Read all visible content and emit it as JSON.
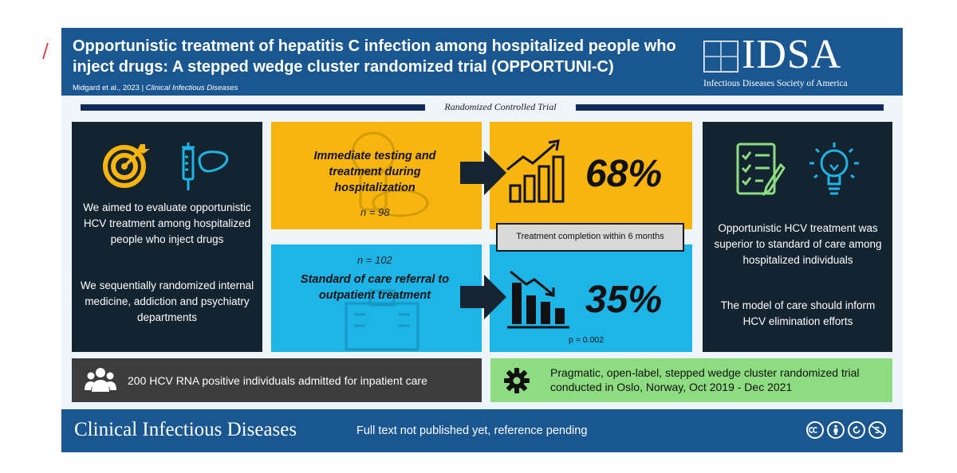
{
  "header": {
    "title": "Opportunistic treatment of hepatitis C infection among hospitalized people who inject drugs: A stepped wedge cluster randomized trial (OPPORTUNI-C)",
    "authors": "Midgard et al., 2023",
    "separator": "|",
    "journal": "Clinical Infectious Diseases"
  },
  "logo": {
    "name": "IDSA",
    "subtitle": "Infectious Diseases Society of America"
  },
  "study_type": "Randomized Controlled Trial",
  "left_panel": {
    "icons": [
      "target-icon",
      "syringe-liver-icon"
    ],
    "aim": "We aimed to evaluate opportunistic HCV treatment among hospitalized people who inject drugs",
    "method": "We sequentially randomized internal medicine, addiction and psychiatry departments"
  },
  "arms": [
    {
      "label": "Immediate testing and treatment during hospitalization",
      "n": "n = 98",
      "result": "68%",
      "color": "#f7b50d",
      "trend_icon": "bar-chart-up-icon"
    },
    {
      "label": "Standard of care referral to outpatient treatment",
      "n": "n = 102",
      "result": "35%",
      "color": "#1db5e7",
      "trend_icon": "bar-chart-down-icon"
    }
  ],
  "outcome_label": "Treatment completion within 6 months",
  "p_value": "p = 0.002",
  "right_panel": {
    "icons": [
      "checklist-icon",
      "lightbulb-icon"
    ],
    "conclusion": "Opportunistic HCV treatment was superior to standard of care among hospitalized individuals",
    "implication": "The model of care should inform HCV elimination efforts"
  },
  "population": {
    "icon": "people-group-icon",
    "text": "200 HCV RNA positive individuals admitted for inpatient care"
  },
  "design": {
    "icon": "gear-icon",
    "text": "Pragmatic, open-label, stepped wedge cluster randomized trial conducted in Oslo, Norway, Oct 2019 - Dec 2021"
  },
  "footer": {
    "journal": "Clinical Infectious Diseases",
    "note": "Full text not published yet, reference pending",
    "license_icons": [
      "cc-icon",
      "by-icon",
      "sa-icon",
      "nc-icon"
    ]
  },
  "colors": {
    "header_blue": "#1a5791",
    "dark_panel": "#13232f",
    "yellow": "#f7b50d",
    "cyan": "#1db5e7",
    "green": "#8edc81",
    "gray": "#3d3d3d"
  }
}
